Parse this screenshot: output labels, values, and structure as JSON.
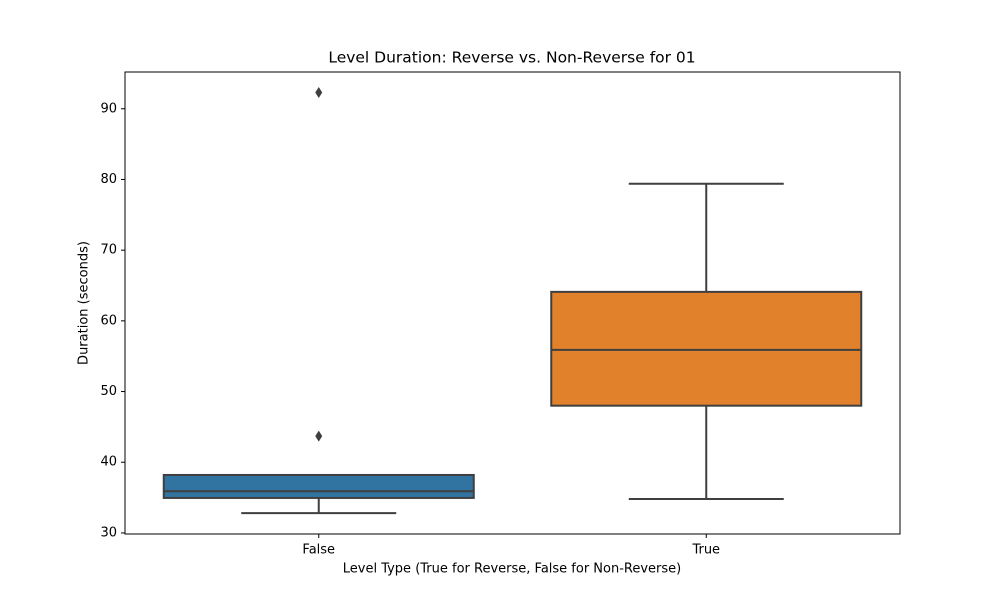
{
  "chart_data": {
    "type": "box",
    "title": "Level Duration: Reverse vs. Non-Reverse for 01",
    "x_label": "Level Type (True for Reverse, False for Non-Reverse)",
    "y_label": "Duration (seconds)",
    "categories": [
      "False",
      "True"
    ],
    "boxes": [
      {
        "color": "#3274a1",
        "whislo": 32.8,
        "q1": 34.95,
        "med": 35.9,
        "q3": 38.2,
        "whishi": 38.2,
        "fliers": [
          43.7,
          92.3
        ]
      },
      {
        "color": "#e1812c",
        "whislo": 34.8,
        "q1": 48.0,
        "med": 55.9,
        "q3": 64.1,
        "whishi": 79.4,
        "fliers": []
      }
    ],
    "ylim": [
      29.85,
      95.2
    ],
    "yticks": [
      30,
      40,
      50,
      60,
      70,
      80,
      90
    ],
    "grid": false
  }
}
